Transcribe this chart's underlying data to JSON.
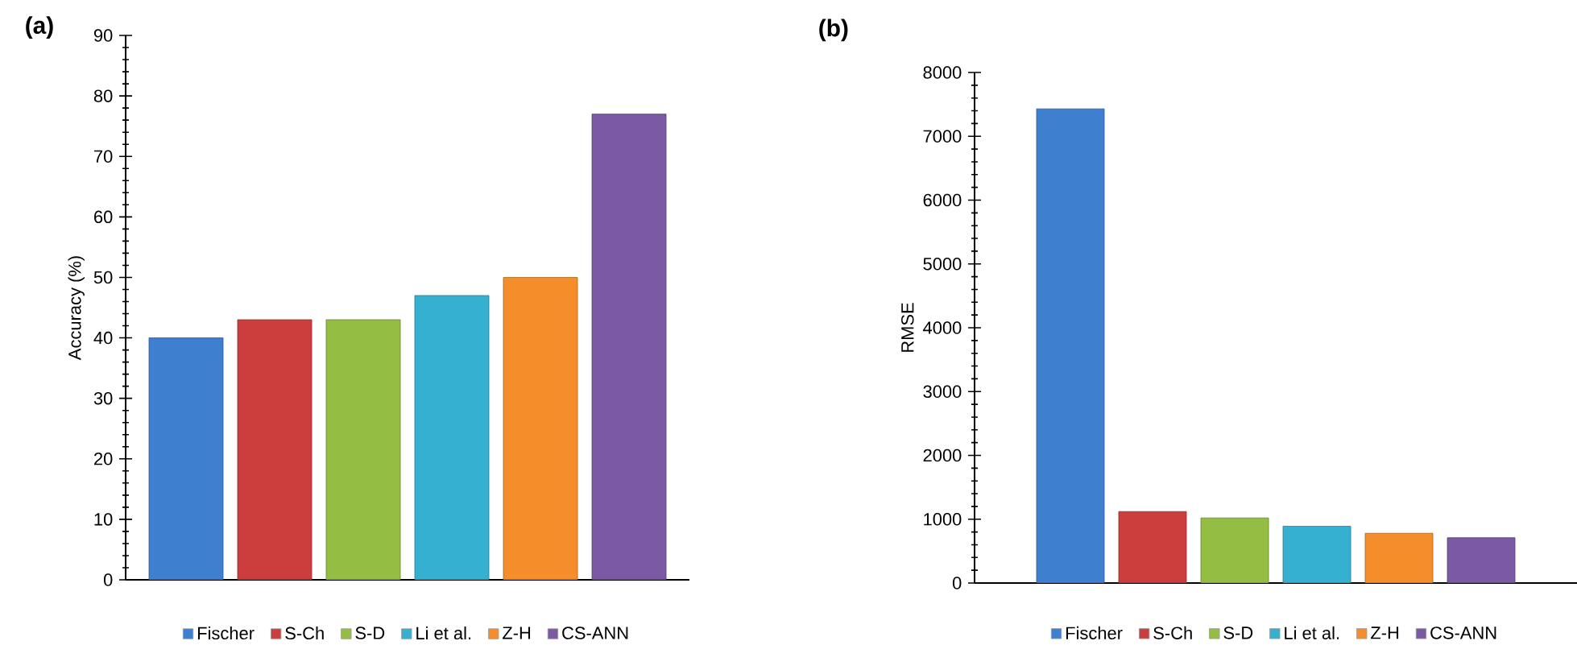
{
  "chart_data": [
    {
      "type": "bar",
      "title": "(a)",
      "ylabel": "Accuracy (%)",
      "categories": [
        null
      ],
      "ylim": [
        0,
        90
      ],
      "yticks": [
        0,
        10,
        20,
        30,
        40,
        50,
        60,
        70,
        80,
        90
      ],
      "legend": "bottom",
      "tick_labels": "y",
      "series": [
        {
          "name": "Fischer",
          "color": "#3f7fcf",
          "values": [
            40
          ]
        },
        {
          "name": "S-Ch",
          "color": "#cc3e3e",
          "values": [
            43
          ]
        },
        {
          "name": "S-D",
          "color": "#94bd44",
          "values": [
            43
          ]
        },
        {
          "name": "Li et al.",
          "color": "#35b0d1",
          "values": [
            47
          ]
        },
        {
          "name": "Z-H",
          "color": "#f58d2a",
          "values": [
            50
          ]
        },
        {
          "name": "CS-ANN",
          "color": "#7b5aa3",
          "values": [
            77
          ]
        }
      ]
    },
    {
      "type": "bar",
      "title": "(b)",
      "ylabel": "RMSE",
      "categories": [
        null
      ],
      "ylim": [
        0,
        8000
      ],
      "yticks": [
        0,
        1000,
        2000,
        3000,
        4000,
        5000,
        6000,
        7000,
        8000
      ],
      "legend": "bottom",
      "tick_labels": "y",
      "series": [
        {
          "name": "Fischer",
          "color": "#3f7fcf",
          "values": [
            7430
          ]
        },
        {
          "name": "S-Ch",
          "color": "#cc3e3e",
          "values": [
            1120
          ]
        },
        {
          "name": "S-D",
          "color": "#94bd44",
          "values": [
            1020
          ]
        },
        {
          "name": "Li et al.",
          "color": "#35b0d1",
          "values": [
            890
          ]
        },
        {
          "name": "Z-H",
          "color": "#f58d2a",
          "values": [
            780
          ]
        },
        {
          "name": "CS-ANN",
          "color": "#7b5aa3",
          "values": [
            710
          ]
        }
      ]
    }
  ]
}
